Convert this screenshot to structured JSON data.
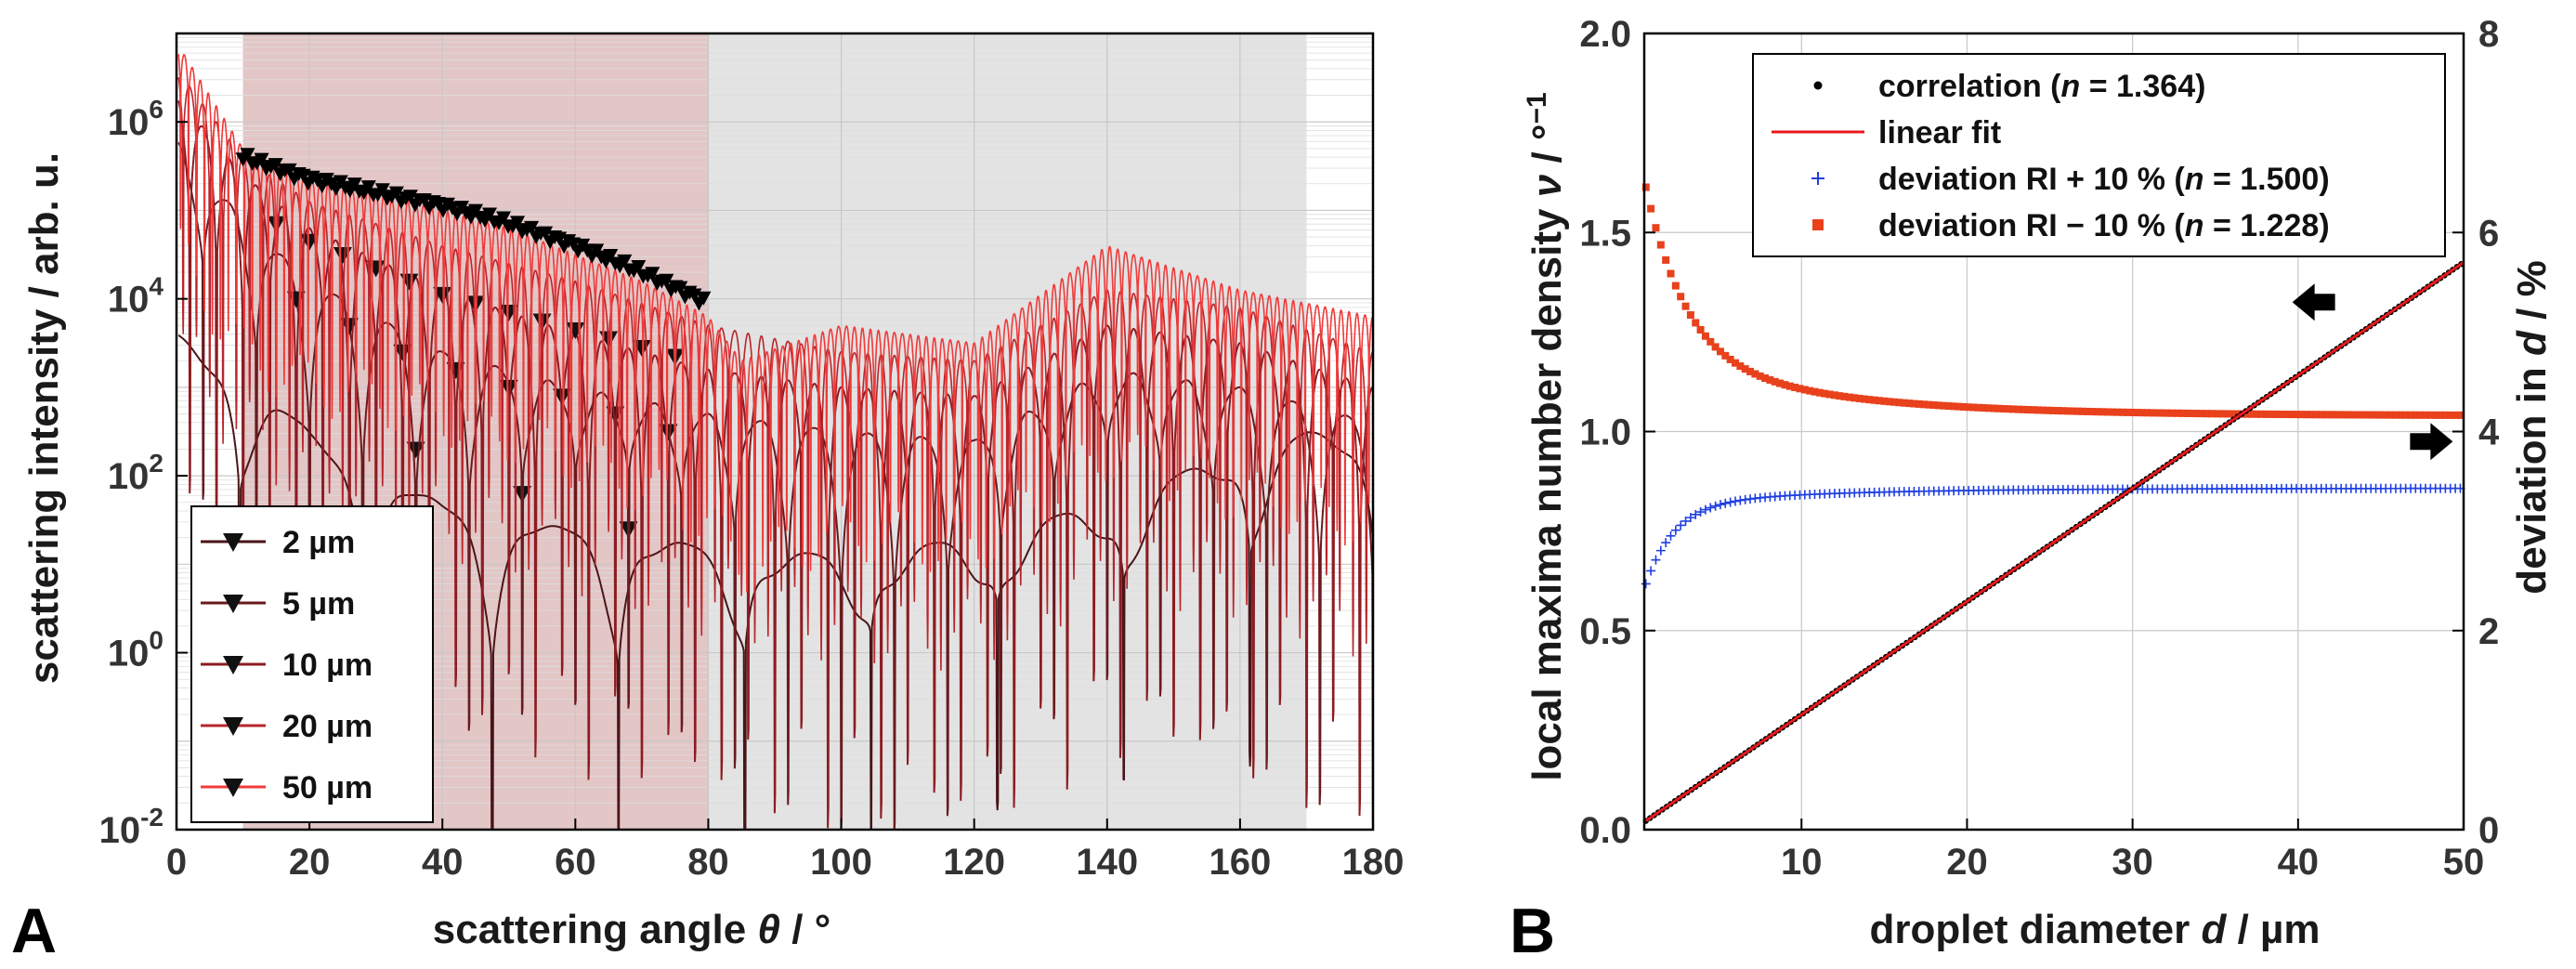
{
  "panels": {
    "A": {
      "letter": "A"
    },
    "B": {
      "letter": "B"
    }
  },
  "chart_data": [
    {
      "panel": "A",
      "type": "line",
      "title": "",
      "xlabel": "scattering angle θ / °",
      "ylabel": "scattering intensity / arb. u.",
      "xlim": [
        0,
        180
      ],
      "ylim_log10": [
        -2,
        7
      ],
      "yscale": "log",
      "xticks": [
        "0",
        "20",
        "40",
        "60",
        "80",
        "100",
        "120",
        "140",
        "160",
        "180"
      ],
      "yticks": [
        {
          "mant": "10",
          "exp": "-2"
        },
        {
          "mant": "10",
          "exp": "0"
        },
        {
          "mant": "10",
          "exp": "2"
        },
        {
          "mant": "10",
          "exp": "4"
        },
        {
          "mant": "10",
          "exp": "6"
        }
      ],
      "shaded_regions": [
        {
          "from": 10,
          "to": 80,
          "color": "#e3c6c6"
        },
        {
          "from": 80,
          "to": 170,
          "color": "#e3e3e3"
        }
      ],
      "legend_position": "bottom-left",
      "series": [
        {
          "name": "2 µm",
          "color": "#4a1518",
          "marker": "triangle-down",
          "envelope": [
            [
              0,
              3.6
            ],
            [
              10,
              3.2
            ],
            [
              20,
              2.5
            ],
            [
              30,
              2.0
            ],
            [
              40,
              1.7
            ],
            [
              50,
              1.5
            ],
            [
              60,
              1.4
            ],
            [
              80,
              1.2
            ],
            [
              100,
              1.1
            ],
            [
              120,
              1.3
            ],
            [
              140,
              1.7
            ],
            [
              160,
              2.3
            ],
            [
              170,
              2.5
            ],
            [
              180,
              2.4
            ]
          ],
          "dip_period": 19,
          "dip_depth": 1.4,
          "marker_points": [
            [
              36,
              2.3
            ],
            [
              52,
              1.8
            ],
            [
              68,
              1.4
            ]
          ]
        },
        {
          "name": "5 µm",
          "color": "#6a1a1e",
          "marker": "triangle-down",
          "envelope": [
            [
              0,
              5.8
            ],
            [
              10,
              4.9
            ],
            [
              20,
              4.2
            ],
            [
              40,
              3.4
            ],
            [
              60,
              3.0
            ],
            [
              80,
              2.7
            ],
            [
              100,
              2.5
            ],
            [
              120,
              2.4
            ],
            [
              140,
              3.2
            ],
            [
              160,
              3.0
            ],
            [
              180,
              2.6
            ]
          ],
          "dip_period": 8,
          "dip_depth": 1.6,
          "marker_points": [
            [
              18,
              4.0
            ],
            [
              26,
              3.7
            ],
            [
              34,
              3.4
            ],
            [
              42,
              3.2
            ],
            [
              50,
              3.0
            ],
            [
              58,
              2.9
            ],
            [
              66,
              2.7
            ],
            [
              74,
              2.5
            ]
          ]
        },
        {
          "name": "10 µm",
          "color": "#8c1c22",
          "marker": "triangle-down",
          "envelope": [
            [
              0,
              6.3
            ],
            [
              10,
              5.4
            ],
            [
              20,
              4.8
            ],
            [
              40,
              4.1
            ],
            [
              60,
              3.6
            ],
            [
              80,
              3.2
            ],
            [
              100,
              3.0
            ],
            [
              120,
              2.9
            ],
            [
              140,
              3.7
            ],
            [
              160,
              3.5
            ],
            [
              180,
              3.0
            ]
          ],
          "dip_period": 4,
          "dip_depth": 1.8,
          "marker_points": [
            [
              15,
              4.85
            ],
            [
              20,
              4.65
            ],
            [
              25,
              4.5
            ],
            [
              30,
              4.35
            ],
            [
              35,
              4.2
            ],
            [
              40,
              4.05
            ],
            [
              45,
              3.95
            ],
            [
              50,
              3.85
            ],
            [
              55,
              3.75
            ],
            [
              60,
              3.65
            ],
            [
              65,
              3.55
            ],
            [
              70,
              3.45
            ],
            [
              75,
              3.35
            ]
          ]
        },
        {
          "name": "20 µm",
          "color": "#b8262b",
          "marker": "triangle-down",
          "envelope": [
            [
              0,
              6.6
            ],
            [
              10,
              5.6
            ],
            [
              20,
              5.1
            ],
            [
              40,
              4.6
            ],
            [
              60,
              4.2
            ],
            [
              80,
              3.7
            ],
            [
              100,
              3.4
            ],
            [
              120,
              3.3
            ],
            [
              140,
              4.1
            ],
            [
              160,
              3.9
            ],
            [
              180,
              3.4
            ]
          ],
          "dip_period": 2,
          "dip_depth": 1.2,
          "marker_points": []
        },
        {
          "name": "50 µm",
          "color": "#f03a3a",
          "marker": "triangle-down",
          "envelope": [
            [
              0,
              6.9
            ],
            [
              10,
              5.7
            ],
            [
              20,
              5.35
            ],
            [
              30,
              5.2
            ],
            [
              40,
              5.0
            ],
            [
              50,
              4.8
            ],
            [
              60,
              4.5
            ],
            [
              70,
              4.2
            ],
            [
              80,
              3.8
            ],
            [
              85,
              3.3
            ],
            [
              100,
              3.7
            ],
            [
              120,
              3.5
            ],
            [
              140,
              4.6
            ],
            [
              160,
              4.1
            ],
            [
              180,
              3.8
            ]
          ],
          "dip_period": 1.2,
          "dip_depth": 0.9,
          "marker_points": [],
          "dense_marker_range": [
            10,
            80
          ],
          "dense_marker_envelope": [
            [
              10,
              5.6
            ],
            [
              20,
              5.35
            ],
            [
              30,
              5.2
            ],
            [
              40,
              5.05
            ],
            [
              50,
              4.85
            ],
            [
              60,
              4.6
            ],
            [
              70,
              4.3
            ],
            [
              80,
              3.95
            ]
          ]
        }
      ]
    },
    {
      "panel": "B",
      "type": "line",
      "title": "",
      "xlabel_parts": [
        "droplet diameter ",
        "d",
        " / µm"
      ],
      "ylabel_parts": [
        "local maxima number density ",
        "ν",
        " / °",
        "−1"
      ],
      "y2label_parts": [
        "deviation in ",
        "d",
        " / %"
      ],
      "xlim": [
        0.5,
        50
      ],
      "ylim": [
        0.0,
        2.0
      ],
      "y2lim": [
        0,
        8
      ],
      "xticks": [
        "10",
        "20",
        "30",
        "40",
        "50"
      ],
      "xtick_values": [
        10,
        20,
        30,
        40,
        50
      ],
      "yticks": [
        "0.0",
        "0.5",
        "1.0",
        "1.5",
        "2.0"
      ],
      "ytick_values": [
        0.0,
        0.5,
        1.0,
        1.5,
        2.0
      ],
      "y2ticks": [
        "0",
        "2",
        "4",
        "6",
        "8"
      ],
      "y2tick_values": [
        0,
        2,
        4,
        6,
        8
      ],
      "grid": true,
      "legend_position": "top-right",
      "series": [
        {
          "name_parts": [
            "correlation (",
            "n",
            " = 1.364)"
          ],
          "style": "dots",
          "color": "#000000",
          "axis": "left",
          "slope": 0.0284,
          "intercept": 0.005
        },
        {
          "name_parts": [
            "linear fit"
          ],
          "style": "line",
          "color": "#e8191c",
          "axis": "left",
          "slope": 0.0284,
          "intercept": 0.005
        },
        {
          "name_parts": [
            "deviation RI + 10 % (",
            "n",
            " = 1.500)"
          ],
          "style": "plus",
          "color": "#1f3fe0",
          "axis": "right",
          "asymptote": 3.43,
          "amp": 0.8,
          "decay": 1.1
        },
        {
          "name_parts": [
            "deviation RI − 10 % (",
            "n",
            " = 1.228)"
          ],
          "style": "square",
          "color": "#e8411c",
          "axis": "right",
          "asymptote": 4.16,
          "amp": 1.7,
          "decay": 1.1
        }
      ],
      "arrows": [
        {
          "points_to": "left",
          "x": 41,
          "y2": 5.3
        },
        {
          "points_to": "right",
          "x": 48,
          "y2": 3.9
        }
      ]
    }
  ]
}
